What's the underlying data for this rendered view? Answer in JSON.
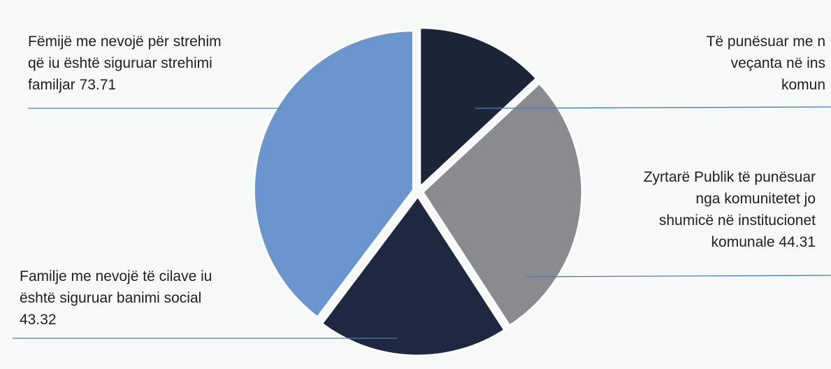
{
  "chart_data": {
    "type": "pie",
    "slices": [
      {
        "label": "Të punësuar me nevojë të veçanta në institucionet komunale",
        "label_lines": [
          "Të punësuar me n",
          "veçanta në ins",
          "komun"
        ],
        "value": null,
        "color": "#1c2438"
      },
      {
        "label": "Zyrtarë Publik të punësuar nga komunitetet jo shumicë në institucionet komunale",
        "label_lines": [
          "Zyrtarë Publik të punësuar",
          "nga komunitetet jo",
          "shumicë në institucionet",
          "komunale 44.31"
        ],
        "value": 44.31,
        "color": "#8a8b8e"
      },
      {
        "label": "Familje me nevojë të cilave iu është siguruar banimi social",
        "label_lines": [
          "Familje me nevojë të cilave iu",
          "është siguruar banimi social",
          "43.32"
        ],
        "value": 43.32,
        "color": "#1f2840"
      },
      {
        "label": "Fëmijë me nevojë për strehim që iu është siguruar strehimi familjar",
        "label_lines": [
          "Fëmijë me nevojë për strehim",
          "që iu është siguruar strehimi",
          "familjar 73.71"
        ],
        "value": 73.71,
        "color": "#6b95cf"
      }
    ],
    "leader_color": "#4b7fb5"
  }
}
